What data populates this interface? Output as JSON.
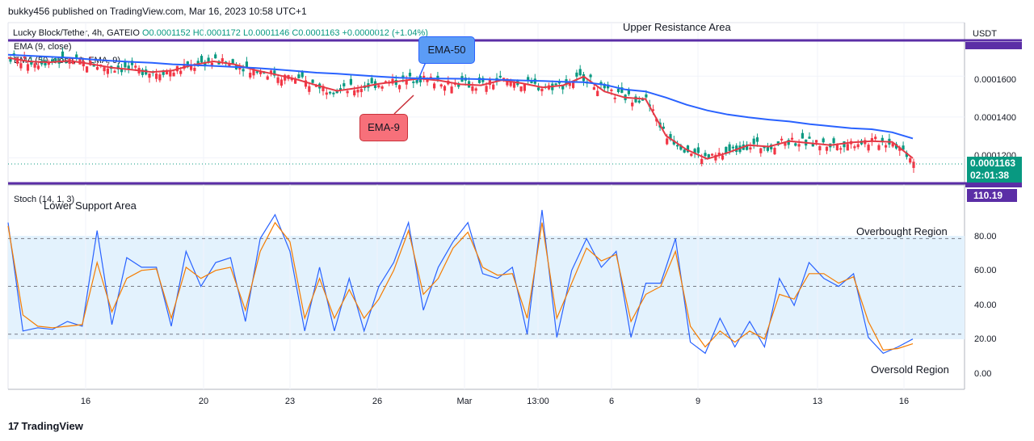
{
  "header": {
    "publisher": "bukky456 published on TradingView.com, Mar 16, 2023 10:58 UTC+1",
    "symbol": "Lucky Block/Tether, 4h, GATEIO",
    "ohlc": "O0.0001152 H0.0001172 L0.0001146 C0.0001163 +0.0000012 (+1.04%)",
    "ema9": "EMA (9, close)",
    "ema50": "EMA (50, close, 0, EMA, 9)",
    "stoch": "Stoch (14, 1, 3)"
  },
  "annotations": {
    "upper_resistance": "Upper Resistance Area",
    "lower_support": "Lower Support Area",
    "overbought": "Overbought Region",
    "oversold": "Oversold Region",
    "ema50_callout": "EMA-50",
    "ema9_callout": "EMA-9"
  },
  "price_scale": {
    "currency": "USDT",
    "ticks": [
      "0.0001600",
      "0.0001400",
      "0.0001200"
    ],
    "last_price": "0.0001163",
    "countdown": "02:01:38"
  },
  "stoch_scale": {
    "ticks": [
      "80.00",
      "60.00",
      "40.00",
      "20.00",
      "0.00"
    ],
    "current_tag": "110.19"
  },
  "time_axis": [
    "16",
    "20",
    "23",
    "26",
    "Mar",
    "13:00",
    "6",
    "9",
    "13",
    "16"
  ],
  "logo": "TradingView",
  "colors": {
    "bull": "#089981",
    "bear": "#f23645",
    "ema9": "#e53946",
    "ema50": "#2962ff",
    "stoch_k": "#2962ff",
    "stoch_d": "#f57c00",
    "levels": "#5b2ea6",
    "band": "#e3f2fd"
  },
  "chart_data": [
    {
      "type": "line",
      "title": "Lucky Block/Tether, 4h, GATEIO",
      "ylim": [
        0.0001075,
        0.0001775
      ],
      "resistance_level": 0.000175,
      "support_level": 0.0001075,
      "series": [
        {
          "name": "EMA (9, close)",
          "values": [
            0.000169,
            0.0001672,
            0.0001668,
            0.0001675,
            0.000166,
            0.0001642,
            0.0001632,
            0.000162,
            0.0001628,
            0.0001655,
            0.0001672,
            0.0001658,
            0.000163,
            0.0001608,
            0.0001585,
            0.0001555,
            0.0001528,
            0.0001542,
            0.0001562,
            0.0001575,
            0.0001588,
            0.0001578,
            0.000156,
            0.0001555,
            0.000158,
            0.0001565,
            0.0001545,
            0.0001555,
            0.0001598,
            0.0001525,
            0.0001495,
            0.0001488,
            0.0001308,
            0.000124,
            0.0001195,
            0.0001225,
            0.0001262,
            0.0001255,
            0.0001282,
            0.0001272,
            0.0001262,
            0.0001275,
            0.0001282,
            0.0001278,
            0.0001198
          ]
        },
        {
          "name": "EMA (50, close, 0, EMA, 9)",
          "values": [
            0.0001705,
            0.00017,
            0.0001695,
            0.000169,
            0.0001682,
            0.0001675,
            0.000167,
            0.0001665,
            0.0001658,
            0.0001654,
            0.000165,
            0.0001645,
            0.000164,
            0.0001633,
            0.0001625,
            0.0001617,
            0.0001612,
            0.0001605,
            0.0001598,
            0.0001592,
            0.0001589,
            0.0001588,
            0.0001587,
            0.0001585,
            0.0001582,
            0.0001579,
            0.0001576,
            0.0001572,
            0.000157,
            0.0001558,
            0.0001535,
            0.0001525,
            0.0001495,
            0.000146,
            0.0001432,
            0.0001412,
            0.0001398,
            0.0001387,
            0.0001378,
            0.0001365,
            0.0001355,
            0.0001345,
            0.000134,
            0.0001325,
            0.0001295
          ]
        }
      ]
    },
    {
      "type": "line",
      "title": "Stoch (14, 1, 3)",
      "ylim": [
        -7,
        103
      ],
      "levels": [
        80,
        50,
        20
      ],
      "series": [
        {
          "name": "%K",
          "values": [
            90,
            22,
            24,
            23,
            28,
            25,
            85,
            26,
            68,
            62,
            62,
            25,
            72,
            50,
            65,
            68,
            28,
            80,
            95,
            72,
            22,
            62,
            22,
            55,
            22,
            50,
            65,
            90,
            35,
            62,
            78,
            90,
            58,
            55,
            62,
            20,
            98,
            18,
            60,
            80,
            62,
            72,
            18,
            52,
            52,
            80,
            15,
            8,
            30,
            12,
            28,
            12,
            55,
            38,
            65,
            55,
            50,
            58,
            18,
            8,
            12,
            17
          ]
        },
        {
          "name": "%D",
          "values": [
            88,
            32,
            25,
            24,
            25,
            26,
            65,
            34,
            55,
            60,
            61,
            30,
            62,
            55,
            60,
            62,
            35,
            72,
            90,
            78,
            30,
            55,
            30,
            48,
            30,
            42,
            60,
            85,
            45,
            55,
            74,
            84,
            62,
            57,
            58,
            30,
            90,
            30,
            52,
            74,
            66,
            70,
            28,
            45,
            50,
            72,
            25,
            12,
            22,
            15,
            22,
            17,
            45,
            42,
            58,
            58,
            52,
            56,
            28,
            10,
            11,
            14
          ]
        }
      ]
    }
  ]
}
